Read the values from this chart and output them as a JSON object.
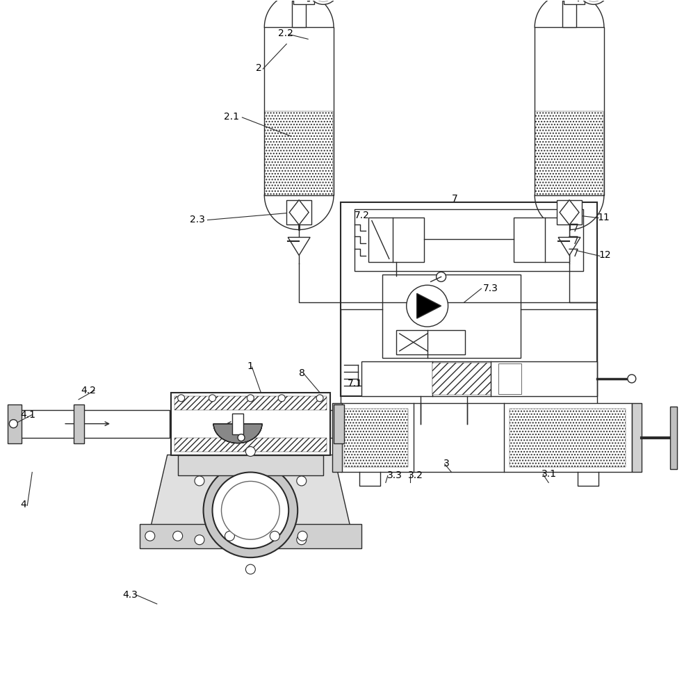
{
  "bg_color": "#ffffff",
  "lc": "#2a2a2a",
  "lw": 1.0,
  "figsize": [
    9.84,
    10.0
  ],
  "dpi": 100,
  "xlim": [
    0,
    984
  ],
  "ylim": [
    0,
    1000
  ]
}
